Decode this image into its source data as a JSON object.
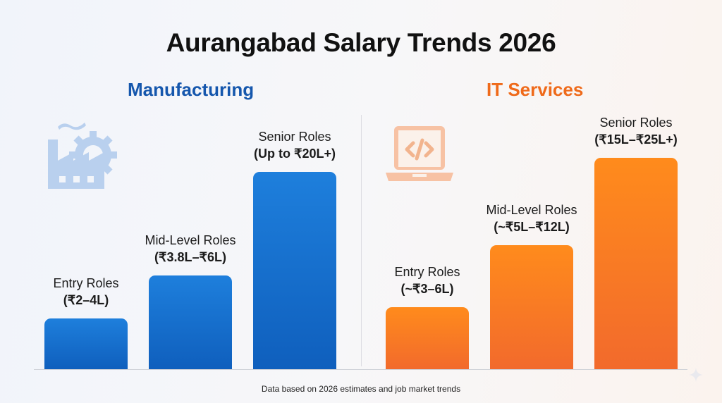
{
  "title": "Aurangabad Salary Trends 2026",
  "footer": "Data based on 2026 estimates and job market trends",
  "colors": {
    "manufacturing": "#1565c8",
    "it_services": "#f7772a",
    "title": "#111111"
  },
  "icons": {
    "manufacturing": "factory-gear-icon",
    "it_services": "laptop-code-icon"
  },
  "chart_data": [
    {
      "type": "bar",
      "title": "Manufacturing",
      "categories": [
        "Entry Roles",
        "Mid-Level Roles",
        "Senior Roles"
      ],
      "labels": [
        "(₹2–4L)",
        "(₹3.8L–₹6L)",
        "(Up to ₹20L+)"
      ],
      "ranges_lakh": [
        [
          2,
          4
        ],
        [
          3.8,
          6
        ],
        [
          20,
          null
        ]
      ]
    },
    {
      "type": "bar",
      "title": "IT Services",
      "categories": [
        "Entry Roles",
        "Mid-Level Roles",
        "Senior Roles"
      ],
      "labels": [
        "(~₹3–6L)",
        "(~₹5L–₹12L)",
        "(₹15L–₹25L+)"
      ],
      "ranges_lakh": [
        [
          3,
          6
        ],
        [
          5,
          12
        ],
        [
          15,
          25
        ]
      ]
    }
  ]
}
